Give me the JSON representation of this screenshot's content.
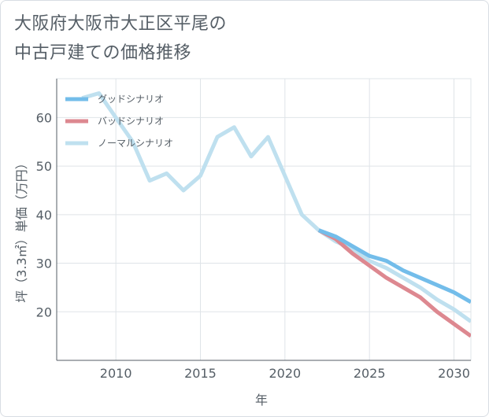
{
  "title_lines": [
    "大阪府大阪市大正区平尾の",
    "中古戸建ての価格推移"
  ],
  "chart_data": {
    "type": "line",
    "title": "大阪府大阪市大正区平尾の中古戸建ての価格推移",
    "xlabel": "年",
    "ylabel": "坪（3.3㎡）単価（万円）",
    "xlim": [
      2006.5,
      2031
    ],
    "ylim": [
      10,
      68
    ],
    "xticks": [
      2010,
      2015,
      2020,
      2025,
      2030
    ],
    "yticks": [
      20,
      30,
      40,
      50,
      60
    ],
    "grid": true,
    "legend_position": "top-left",
    "series": [
      {
        "name": "グッドシナリオ",
        "color": "#73bdea",
        "x": [
          2022,
          2023,
          2024,
          2025,
          2026,
          2027,
          2028,
          2029,
          2030,
          2031
        ],
        "y": [
          36.8,
          35.5,
          33.5,
          31.5,
          30.5,
          28.5,
          27.0,
          25.5,
          24.0,
          22.0
        ]
      },
      {
        "name": "バッドシナリオ",
        "color": "#dd8890",
        "x": [
          2022,
          2023,
          2024,
          2025,
          2026,
          2027,
          2028,
          2029,
          2030,
          2031
        ],
        "y": [
          36.8,
          35.0,
          32.0,
          29.5,
          27.0,
          25.0,
          23.0,
          20.0,
          17.5,
          15.0
        ]
      },
      {
        "name": "ノーマルシナリオ",
        "color": "#bfe0ef",
        "x": [
          2008,
          2009,
          2010,
          2011,
          2012,
          2013,
          2014,
          2015,
          2016,
          2017,
          2018,
          2019,
          2020,
          2021,
          2022,
          2023,
          2024,
          2025,
          2026,
          2027,
          2028,
          2029,
          2030,
          2031
        ],
        "y": [
          64,
          65,
          60,
          55,
          47,
          48.5,
          45,
          48,
          56,
          58,
          52,
          56,
          48,
          40,
          36.8,
          34.5,
          33.0,
          30.5,
          29.0,
          27.0,
          25.0,
          22.5,
          20.5,
          18.0
        ]
      }
    ]
  }
}
